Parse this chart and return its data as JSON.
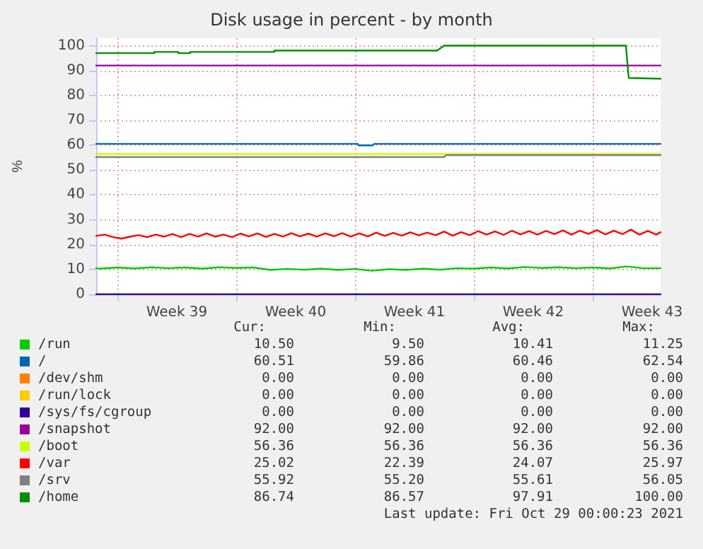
{
  "chart_data": {
    "type": "line",
    "title": "Disk usage in percent - by month",
    "ylabel": "%",
    "xlim": [
      "2021-09-25T18:00",
      "2021-10-29T00:00"
    ],
    "xticks": [
      {
        "value": "2021-09-27",
        "label": null
      },
      {
        "value": "2021-10-04",
        "label": null
      },
      {
        "value": "2021-10-11",
        "label": null
      },
      {
        "value": "2021-10-18",
        "label": null
      },
      {
        "value": "2021-10-25",
        "label": null
      },
      {
        "value": "2021-09-30T12:00",
        "label": "Week 39"
      },
      {
        "value": "2021-10-07T12:00",
        "label": "Week 40"
      },
      {
        "value": "2021-10-14T12:00",
        "label": "Week 41"
      },
      {
        "value": "2021-10-21T12:00",
        "label": "Week 42"
      },
      {
        "value": "2021-10-28T12:00",
        "label": "Week 43"
      }
    ],
    "ylim": [
      0,
      103
    ],
    "yticks": [
      0,
      10,
      20,
      30,
      40,
      50,
      60,
      70,
      80,
      90,
      100
    ],
    "grid": true,
    "legend": "bottom",
    "series": [
      {
        "name": "/run",
        "color": "#00cc00",
        "x": [
          "2021-09-25T18:00",
          "2021-09-26T00:00",
          "2021-09-27T00:00",
          "2021-09-28T00:00",
          "2021-09-29T00:00",
          "2021-09-30T00:00",
          "2021-10-01T00:00",
          "2021-10-02T00:00",
          "2021-10-03T00:00",
          "2021-10-04T00:00",
          "2021-10-05T00:00",
          "2021-10-06T00:00",
          "2021-10-07T00:00",
          "2021-10-08T00:00",
          "2021-10-09T00:00",
          "2021-10-10T00:00",
          "2021-10-11T00:00",
          "2021-10-12T00:00",
          "2021-10-13T00:00",
          "2021-10-14T00:00",
          "2021-10-15T00:00",
          "2021-10-16T00:00",
          "2021-10-17T00:00",
          "2021-10-18T00:00",
          "2021-10-19T00:00",
          "2021-10-20T00:00",
          "2021-10-21T00:00",
          "2021-10-22T00:00",
          "2021-10-23T00:00",
          "2021-10-24T00:00",
          "2021-10-25T00:00",
          "2021-10-26T00:00",
          "2021-10-27T00:00",
          "2021-10-28T00:00",
          "2021-10-29T00:00"
        ],
        "values": [
          10.5,
          10.3,
          10.8,
          10.4,
          10.9,
          10.5,
          10.8,
          10.3,
          10.9,
          10.6,
          10.8,
          9.8,
          10.2,
          9.9,
          10.3,
          9.8,
          10.2,
          9.5,
          10.1,
          9.8,
          10.3,
          9.9,
          10.5,
          10.3,
          10.8,
          10.4,
          11.0,
          10.6,
          10.9,
          10.5,
          10.8,
          10.4,
          11.2,
          10.5,
          10.5
        ]
      },
      {
        "name": "/",
        "color": "#0066b3",
        "x": [
          "2021-09-25T18:00",
          "2021-10-11T04:00",
          "2021-10-11T05:00",
          "2021-10-12T01:00",
          "2021-10-12T03:00",
          "2021-10-29T00:00"
        ],
        "values": [
          60.5,
          60.5,
          59.9,
          59.9,
          60.5,
          60.5
        ]
      },
      {
        "name": "/dev/shm",
        "color": "#ff8000"
      },
      {
        "name": "/run/lock",
        "color": "#ffcc00"
      },
      {
        "name": "/sys/fs/cgroup",
        "color": "#330099",
        "x": [
          "2021-09-25T18:00",
          "2021-10-29T00:00"
        ],
        "values": [
          0,
          0
        ]
      },
      {
        "name": "/snapshot",
        "color": "#990099",
        "x": [
          "2021-09-25T18:00",
          "2021-10-29T00:00"
        ],
        "values": [
          92,
          92
        ]
      },
      {
        "name": "/boot",
        "color": "#ccff00",
        "x": [
          "2021-09-25T18:00",
          "2021-10-29T00:00"
        ],
        "values": [
          56.4,
          56.4
        ]
      },
      {
        "name": "/var",
        "color": "#ff0000",
        "x": [
          "2021-09-25T18:00",
          "2021-09-26T06:00",
          "2021-09-26T18:00",
          "2021-09-27T06:00",
          "2021-09-27T18:00",
          "2021-09-28T06:00",
          "2021-09-28T18:00",
          "2021-09-29T06:00",
          "2021-09-29T18:00",
          "2021-09-30T06:00",
          "2021-09-30T18:00",
          "2021-10-01T06:00",
          "2021-10-01T18:00",
          "2021-10-02T06:00",
          "2021-10-02T18:00",
          "2021-10-03T06:00",
          "2021-10-03T18:00",
          "2021-10-04T06:00",
          "2021-10-04T18:00",
          "2021-10-05T06:00",
          "2021-10-05T18:00",
          "2021-10-06T06:00",
          "2021-10-06T18:00",
          "2021-10-07T06:00",
          "2021-10-07T18:00",
          "2021-10-08T06:00",
          "2021-10-08T18:00",
          "2021-10-09T06:00",
          "2021-10-09T18:00",
          "2021-10-10T06:00",
          "2021-10-10T18:00",
          "2021-10-11T06:00",
          "2021-10-11T18:00",
          "2021-10-12T06:00",
          "2021-10-12T18:00",
          "2021-10-13T06:00",
          "2021-10-13T18:00",
          "2021-10-14T06:00",
          "2021-10-14T18:00",
          "2021-10-15T06:00",
          "2021-10-15T18:00",
          "2021-10-16T06:00",
          "2021-10-16T18:00",
          "2021-10-17T06:00",
          "2021-10-17T18:00",
          "2021-10-18T06:00",
          "2021-10-18T18:00",
          "2021-10-19T06:00",
          "2021-10-19T18:00",
          "2021-10-20T06:00",
          "2021-10-20T18:00",
          "2021-10-21T06:00",
          "2021-10-21T18:00",
          "2021-10-22T06:00",
          "2021-10-22T18:00",
          "2021-10-23T06:00",
          "2021-10-23T18:00",
          "2021-10-24T06:00",
          "2021-10-24T18:00",
          "2021-10-25T06:00",
          "2021-10-25T18:00",
          "2021-10-26T06:00",
          "2021-10-26T18:00",
          "2021-10-27T06:00",
          "2021-10-27T18:00",
          "2021-10-28T06:00",
          "2021-10-28T18:00",
          "2021-10-29T00:00"
        ],
        "values": [
          23.5,
          24.0,
          23.0,
          22.4,
          23.2,
          23.8,
          23.0,
          24.0,
          23.2,
          24.2,
          23.0,
          24.3,
          23.2,
          24.5,
          23.2,
          24.0,
          23.0,
          24.4,
          23.3,
          24.5,
          23.1,
          24.3,
          23.2,
          24.6,
          23.3,
          24.4,
          23.2,
          24.5,
          23.4,
          24.6,
          23.2,
          24.5,
          23.3,
          24.8,
          23.5,
          24.7,
          23.6,
          24.9,
          23.7,
          24.8,
          23.8,
          25.2,
          23.6,
          25.0,
          23.8,
          25.4,
          24.0,
          25.3,
          23.9,
          25.6,
          24.1,
          25.4,
          24.0,
          25.5,
          24.2,
          25.7,
          24.0,
          25.6,
          24.3,
          25.8,
          24.1,
          25.6,
          24.2,
          26.0,
          24.0,
          25.5,
          24.0,
          25.0
        ]
      },
      {
        "name": "/srv",
        "color": "#808080",
        "x": [
          "2021-09-25T18:00",
          "2021-10-16T06:00",
          "2021-10-16T09:00",
          "2021-10-29T00:00"
        ],
        "values": [
          55.2,
          55.2,
          56.0,
          56.0
        ]
      },
      {
        "name": "/home",
        "color": "#008f00",
        "x": [
          "2021-09-25T18:00",
          "2021-09-29T04:00",
          "2021-09-29T04:00",
          "2021-09-30T14:00",
          "2021-09-30T14:00",
          "2021-10-01T07:00",
          "2021-10-01T07:00",
          "2021-10-06T06:00",
          "2021-10-06T06:00",
          "2021-10-15T20:00",
          "2021-10-16T01:00",
          "2021-10-16T06:00",
          "2021-10-26T23:00",
          "2021-10-27T03:00",
          "2021-10-29T00:00"
        ],
        "values": [
          97,
          97,
          97.5,
          97.5,
          97,
          97,
          97.5,
          97.5,
          98,
          98,
          99,
          100,
          100,
          87,
          86.7
        ]
      }
    ],
    "annotations": [
      "Cur:",
      "Min:",
      "Avg:",
      "Max:",
      "10.50",
      "9.50",
      "10.41",
      "11.25",
      "60.51",
      "59.86",
      "60.46",
      "62.54",
      "0.00",
      "0.00",
      "0.00",
      "0.00",
      "0.00",
      "0.00",
      "0.00",
      "0.00",
      "0.00",
      "0.00",
      "0.00",
      "0.00",
      "92.00",
      "92.00",
      "92.00",
      "92.00",
      "56.36",
      "56.36",
      "56.36",
      "56.36",
      "25.02",
      "22.39",
      "24.07",
      "25.97",
      "55.92",
      "55.20",
      "55.61",
      "56.05",
      "86.74",
      "86.57",
      "97.91",
      "100.00",
      "Last update: Fri Oct 29 00:00:23 2021"
    ]
  }
}
